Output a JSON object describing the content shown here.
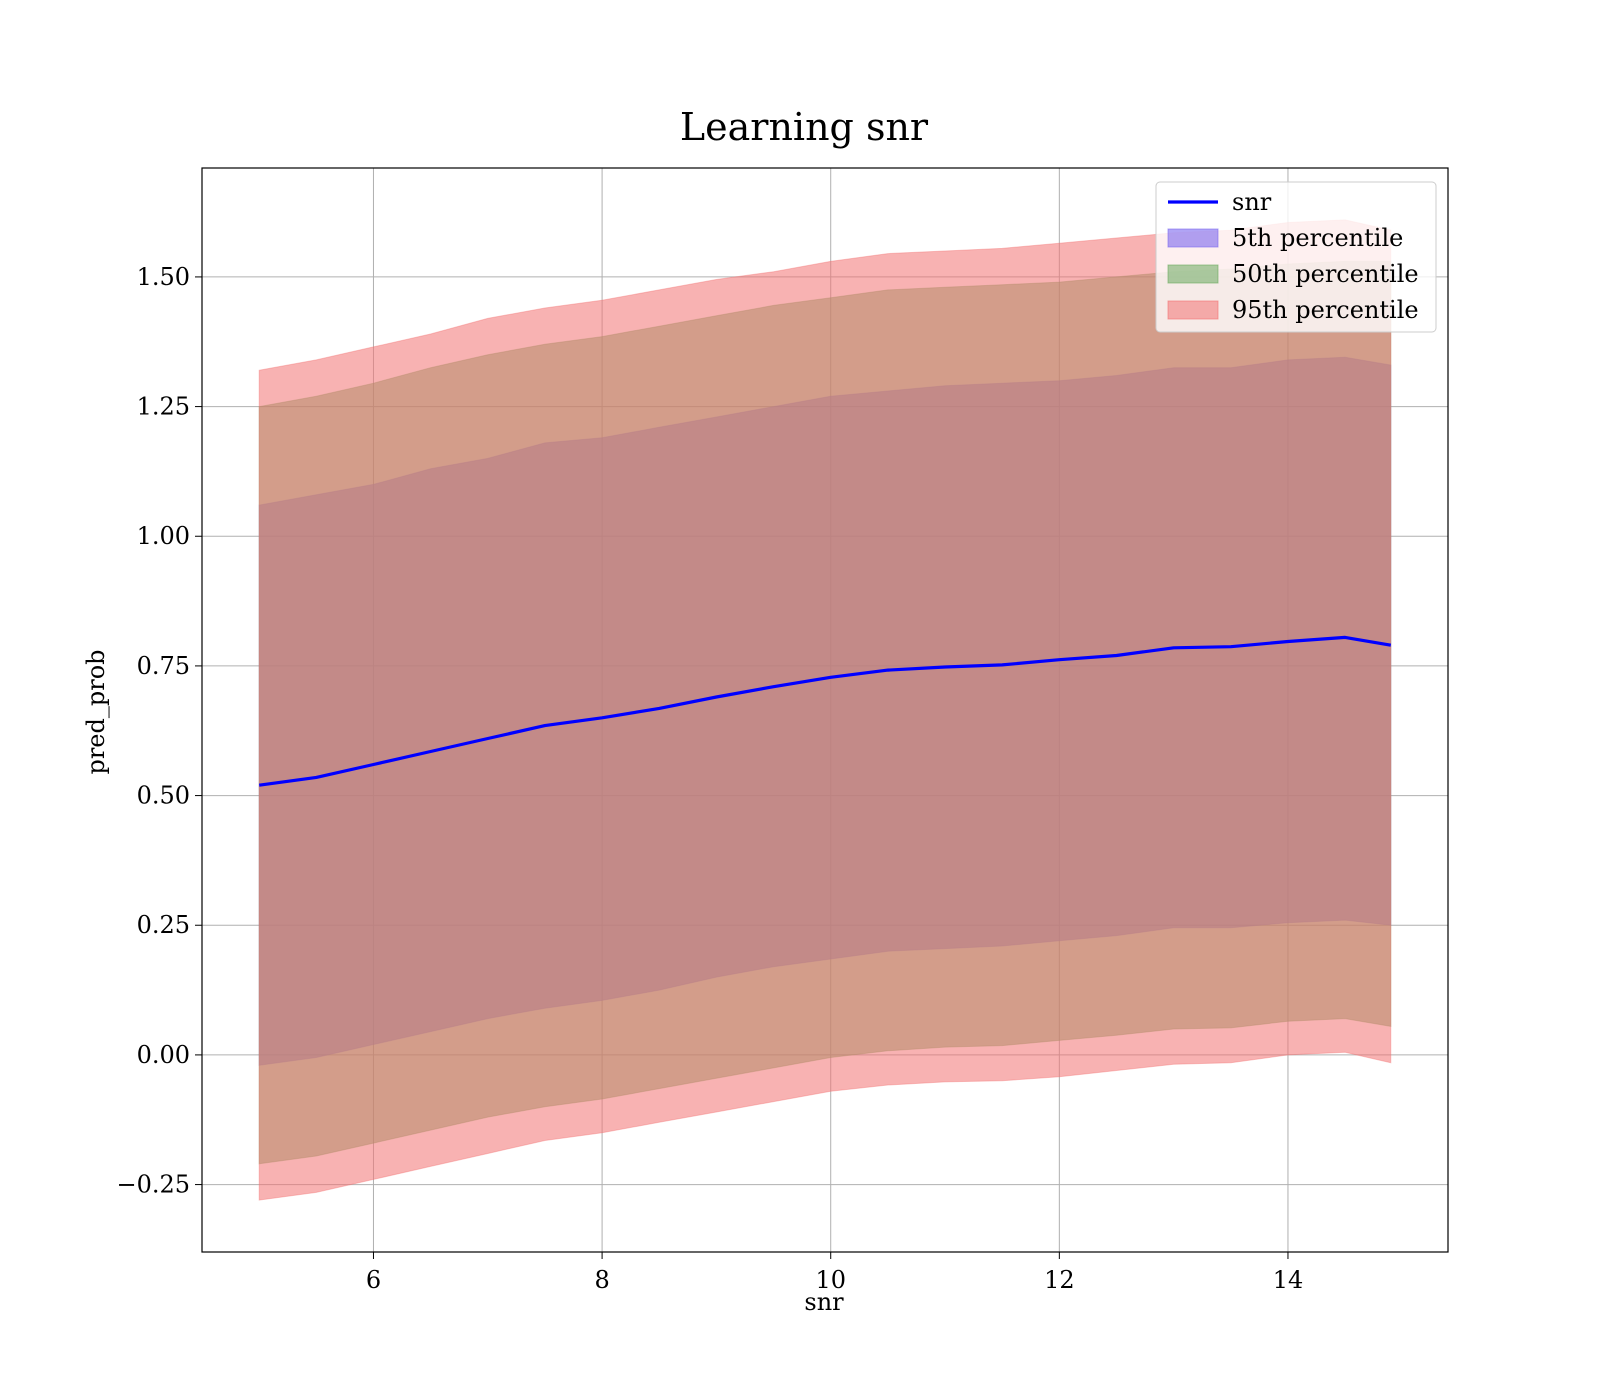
{
  "chart_data": {
    "type": "area",
    "title": "Learning snr",
    "xlabel": "snr",
    "ylabel": "pred_prob",
    "xlim": [
      4.5,
      15.4
    ],
    "ylim": [
      -0.38,
      1.71
    ],
    "xticks": [
      6,
      8,
      10,
      12,
      14
    ],
    "xtick_labels": [
      "6",
      "8",
      "10",
      "12",
      "14"
    ],
    "yticks": [
      -0.25,
      0.0,
      0.25,
      0.5,
      0.75,
      1.0,
      1.25,
      1.5
    ],
    "ytick_labels": [
      "−0.25",
      "0.00",
      "0.25",
      "0.50",
      "0.75",
      "1.00",
      "1.25",
      "1.50"
    ],
    "grid": true,
    "legend_position": "upper right",
    "line": {
      "name": "snr",
      "color": "#0000ff",
      "x": [
        5.0,
        5.5,
        6.0,
        6.5,
        7.0,
        7.5,
        8.0,
        8.5,
        9.0,
        9.5,
        10.0,
        10.5,
        11.0,
        11.5,
        12.0,
        12.5,
        13.0,
        13.5,
        14.0,
        14.5,
        14.9
      ],
      "y": [
        0.52,
        0.535,
        0.56,
        0.585,
        0.61,
        0.635,
        0.65,
        0.668,
        0.69,
        0.71,
        0.728,
        0.742,
        0.748,
        0.752,
        0.762,
        0.77,
        0.785,
        0.787,
        0.797,
        0.805,
        0.79
      ]
    },
    "bands": [
      {
        "name": "5th percentile",
        "color": "#7b68ee",
        "opacity": 0.6,
        "x": [
          5.0,
          5.5,
          6.0,
          6.5,
          7.0,
          7.5,
          8.0,
          8.5,
          9.0,
          9.5,
          10.0,
          10.5,
          11.0,
          11.5,
          12.0,
          12.5,
          13.0,
          13.5,
          14.0,
          14.5,
          14.9
        ],
        "lower": [
          -0.02,
          -0.005,
          0.02,
          0.045,
          0.07,
          0.09,
          0.105,
          0.125,
          0.15,
          0.17,
          0.185,
          0.2,
          0.205,
          0.21,
          0.22,
          0.23,
          0.245,
          0.245,
          0.255,
          0.26,
          0.25
        ],
        "upper": [
          1.06,
          1.08,
          1.1,
          1.13,
          1.15,
          1.18,
          1.19,
          1.21,
          1.23,
          1.25,
          1.27,
          1.28,
          1.29,
          1.295,
          1.3,
          1.31,
          1.325,
          1.325,
          1.34,
          1.345,
          1.33
        ]
      },
      {
        "name": "50th percentile",
        "color": "#6aaa5e",
        "opacity": 0.55,
        "x": [
          5.0,
          5.5,
          6.0,
          6.5,
          7.0,
          7.5,
          8.0,
          8.5,
          9.0,
          9.5,
          10.0,
          10.5,
          11.0,
          11.5,
          12.0,
          12.5,
          13.0,
          13.5,
          14.0,
          14.5,
          14.9
        ],
        "lower": [
          -0.21,
          -0.195,
          -0.17,
          -0.145,
          -0.12,
          -0.1,
          -0.085,
          -0.065,
          -0.045,
          -0.025,
          -0.005,
          0.008,
          0.015,
          0.018,
          0.028,
          0.038,
          0.05,
          0.052,
          0.065,
          0.07,
          0.055
        ],
        "upper": [
          1.25,
          1.27,
          1.295,
          1.325,
          1.35,
          1.37,
          1.385,
          1.405,
          1.425,
          1.445,
          1.46,
          1.475,
          1.48,
          1.485,
          1.49,
          1.5,
          1.51,
          1.515,
          1.525,
          1.53,
          1.53
        ]
      },
      {
        "name": "95th percentile",
        "color": "#f37272",
        "opacity": 0.55,
        "x": [
          5.0,
          5.5,
          6.0,
          6.5,
          7.0,
          7.5,
          8.0,
          8.5,
          9.0,
          9.5,
          10.0,
          10.5,
          11.0,
          11.5,
          12.0,
          12.5,
          13.0,
          13.5,
          14.0,
          14.5,
          14.9
        ],
        "lower": [
          -0.28,
          -0.265,
          -0.24,
          -0.215,
          -0.19,
          -0.165,
          -0.15,
          -0.13,
          -0.11,
          -0.09,
          -0.07,
          -0.058,
          -0.052,
          -0.05,
          -0.042,
          -0.03,
          -0.018,
          -0.015,
          0.0,
          0.005,
          -0.015
        ],
        "upper": [
          1.32,
          1.34,
          1.365,
          1.39,
          1.42,
          1.44,
          1.455,
          1.475,
          1.495,
          1.51,
          1.53,
          1.545,
          1.55,
          1.555,
          1.565,
          1.575,
          1.585,
          1.59,
          1.605,
          1.61,
          1.59
        ]
      }
    ]
  }
}
